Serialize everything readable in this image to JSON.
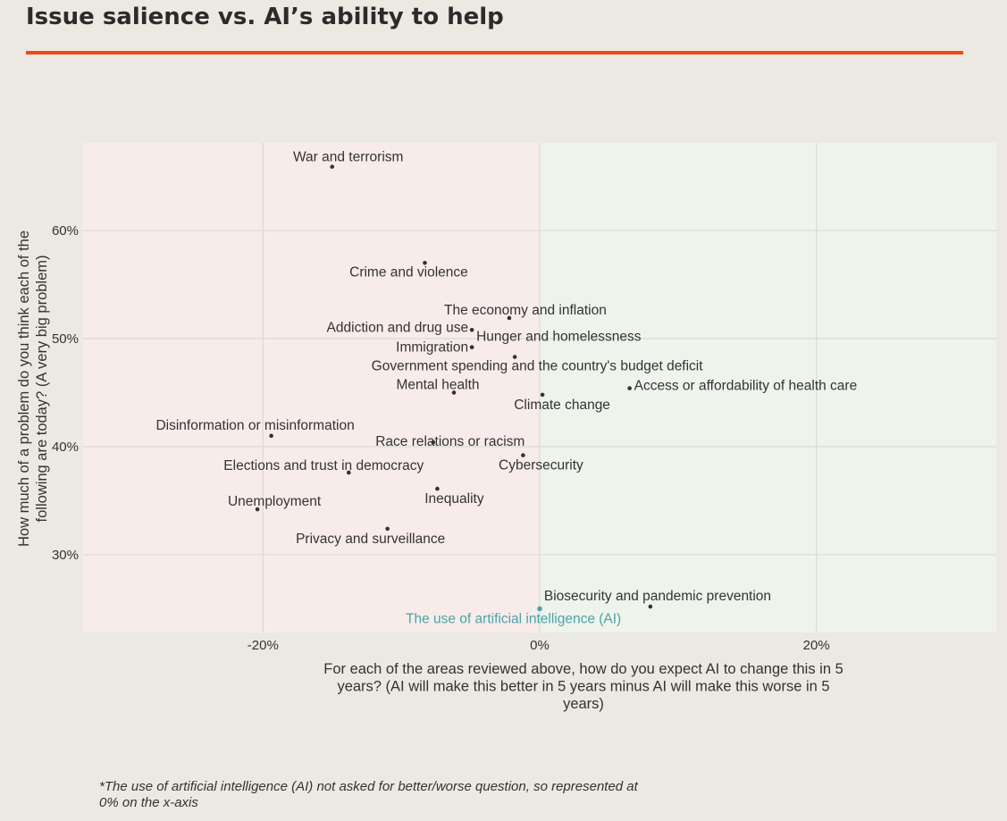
{
  "header": {
    "title": "Issue salience vs. AI’s ability to help"
  },
  "footnote": "*The use of artificial intelligence (AI) not asked for better/worse question, so represented at 0% on the x-axis",
  "colors": {
    "accent": "#f04a14",
    "background": "#ebe9e1",
    "negative_region": "#f8ecea",
    "positive_region": "#eef4ec",
    "point": "#333333",
    "ai_point": "#4aa3a8"
  },
  "chart_data": {
    "type": "scatter",
    "title": "Issue salience vs. AI’s ability to help",
    "xlabel": "For each of the areas reviewed above, how do you expect AI to change this in 5 years? (AI will make this better in 5 years minus AI will make this worse in 5 years)",
    "xlabel_lines": [
      "For each of the areas reviewed above, how do you expect AI to change this in 5",
      "years? (AI will make this better in 5 years minus AI will make this worse in 5",
      "years)"
    ],
    "ylabel": "How much of a problem do you think each of the following are today? (A very big problem)",
    "ylabel_lines": [
      "How much of a problem do you think each of the",
      "following are today? (A very big problem)"
    ],
    "xlim": [
      -33,
      33
    ],
    "ylim": [
      22.8,
      68.1
    ],
    "x_ticks": [
      -20,
      0,
      20
    ],
    "x_tick_labels": [
      "-20%",
      "0%",
      "20%"
    ],
    "y_ticks": [
      30,
      40,
      50,
      60
    ],
    "y_tick_labels": [
      "30%",
      "40%",
      "50%",
      "60%"
    ],
    "grid": true,
    "points": [
      {
        "label": "War and terrorism",
        "x": -15.0,
        "y": 65.9
      },
      {
        "label": "Crime and violence",
        "x": -8.3,
        "y": 57.0
      },
      {
        "label": "The economy and inflation",
        "x": -2.2,
        "y": 51.9
      },
      {
        "label": "Addiction and drug use",
        "x": -4.9,
        "y": 50.8
      },
      {
        "label": "Immigration",
        "x": -4.9,
        "y": 49.2
      },
      {
        "label": "Hunger and homelessness",
        "x": -4.9,
        "y": 49.2
      },
      {
        "label": "Government spending and the country's budget deficit",
        "x": -1.8,
        "y": 48.3
      },
      {
        "label": "Mental health",
        "x": -6.2,
        "y": 45.0
      },
      {
        "label": "Climate change",
        "x": 0.2,
        "y": 44.8
      },
      {
        "label": "Access or affordability of health care",
        "x": 6.5,
        "y": 45.4
      },
      {
        "label": "Disinformation or misinformation",
        "x": -19.4,
        "y": 41.0
      },
      {
        "label": "Race relations or racism",
        "x": -7.7,
        "y": 40.4
      },
      {
        "label": "Cybersecurity",
        "x": -1.2,
        "y": 39.2
      },
      {
        "label": "Elections and trust in democracy",
        "x": -13.8,
        "y": 37.6
      },
      {
        "label": "Inequality",
        "x": -7.4,
        "y": 36.1
      },
      {
        "label": "Unemployment",
        "x": -20.4,
        "y": 34.2
      },
      {
        "label": "Privacy and surveillance",
        "x": -11.0,
        "y": 32.4
      },
      {
        "label": "Biosecurity and pandemic prevention",
        "x": 8.0,
        "y": 25.2
      },
      {
        "label": "The use of artificial intelligence (AI)",
        "x": 0.0,
        "y": 25.0,
        "highlight": true
      }
    ]
  }
}
